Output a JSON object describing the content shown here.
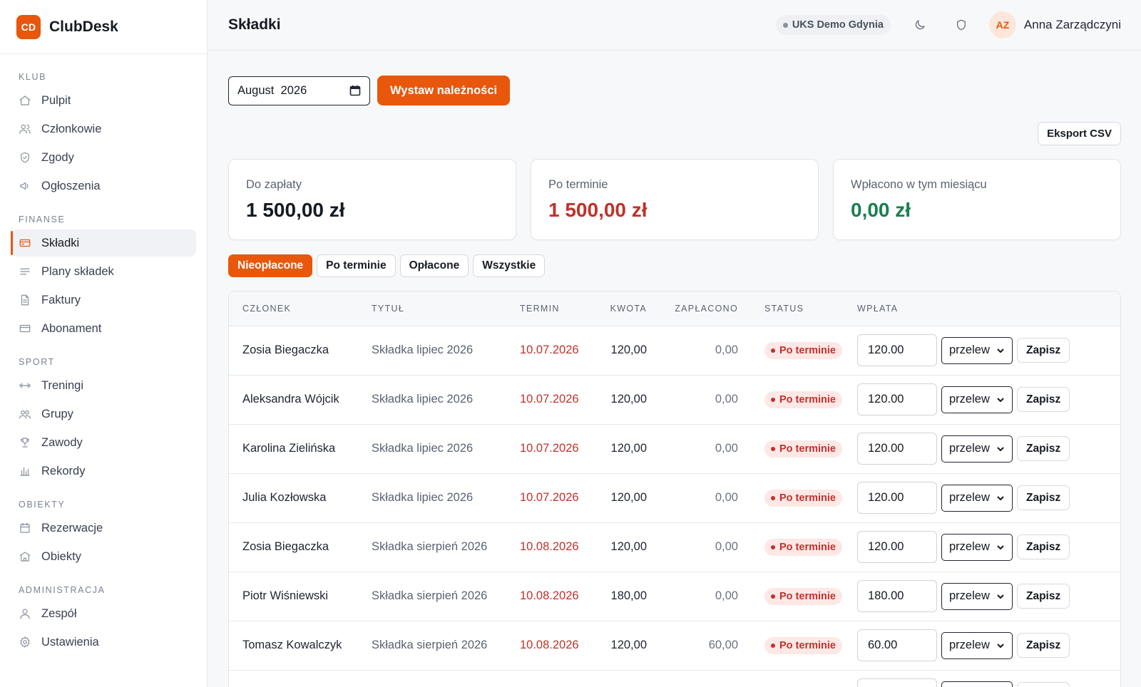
{
  "brand": {
    "logo_text": "CD",
    "name": "ClubDesk"
  },
  "sidebar": {
    "sections": [
      {
        "title": "KLUB",
        "items": [
          {
            "label": "Pulpit",
            "icon": "home-icon"
          },
          {
            "label": "Członkowie",
            "icon": "users-icon"
          },
          {
            "label": "Zgody",
            "icon": "shield-check-icon"
          },
          {
            "label": "Ogłoszenia",
            "icon": "megaphone-icon"
          }
        ]
      },
      {
        "title": "FINANSE",
        "items": [
          {
            "label": "Składki",
            "icon": "credit-card-icon",
            "active": true
          },
          {
            "label": "Plany składek",
            "icon": "list-icon"
          },
          {
            "label": "Faktury",
            "icon": "document-icon"
          },
          {
            "label": "Abonament",
            "icon": "card-icon"
          }
        ]
      },
      {
        "title": "SPORT",
        "items": [
          {
            "label": "Treningi",
            "icon": "dumbbell-icon"
          },
          {
            "label": "Grupy",
            "icon": "group-icon"
          },
          {
            "label": "Zawody",
            "icon": "trophy-icon"
          },
          {
            "label": "Rekordy",
            "icon": "bar-chart-icon"
          }
        ]
      },
      {
        "title": "OBIEKTY",
        "items": [
          {
            "label": "Rezerwacje",
            "icon": "calendar-icon"
          },
          {
            "label": "Obiekty",
            "icon": "building-icon"
          }
        ]
      },
      {
        "title": "ADMINISTRACJA",
        "items": [
          {
            "label": "Zespół",
            "icon": "user-icon"
          },
          {
            "label": "Ustawienia",
            "icon": "gear-icon"
          }
        ]
      }
    ]
  },
  "header": {
    "title": "Składki",
    "club": "UKS Demo Gdynia",
    "user_initials": "AZ",
    "user_name": "Anna Zarządczyni"
  },
  "toolbar": {
    "month_value": "August  2026",
    "issue_button": "Wystaw należności",
    "export_button": "Eksport CSV"
  },
  "stats": [
    {
      "label": "Do zapłaty",
      "value": "1 500,00 zł",
      "tone": "default"
    },
    {
      "label": "Po terminie",
      "value": "1 500,00 zł",
      "tone": "red"
    },
    {
      "label": "Wpłacono w tym miesiącu",
      "value": "0,00 zł",
      "tone": "green"
    }
  ],
  "filters": [
    {
      "label": "Nieopłacone",
      "active": true
    },
    {
      "label": "Po terminie",
      "active": false
    },
    {
      "label": "Opłacone",
      "active": false
    },
    {
      "label": "Wszystkie",
      "active": false
    }
  ],
  "table": {
    "headers": {
      "member": "CZŁONEK",
      "title": "TYTUŁ",
      "due": "TERMIN",
      "amount": "KWOTA",
      "paid": "ZAPŁACONO",
      "status": "STATUS",
      "payment": "WPŁATA"
    },
    "save_label": "Zapisz",
    "rows": [
      {
        "member": "Zosia Biegaczka",
        "title": "Składka lipiec 2026",
        "due": "10.07.2026",
        "amount": "120,00",
        "paid": "0,00",
        "status": "Po terminie",
        "payment": "120.00",
        "method": "przelew"
      },
      {
        "member": "Aleksandra Wójcik",
        "title": "Składka lipiec 2026",
        "due": "10.07.2026",
        "amount": "120,00",
        "paid": "0,00",
        "status": "Po terminie",
        "payment": "120.00",
        "method": "przelew"
      },
      {
        "member": "Karolina Zielińska",
        "title": "Składka lipiec 2026",
        "due": "10.07.2026",
        "amount": "120,00",
        "paid": "0,00",
        "status": "Po terminie",
        "payment": "120.00",
        "method": "przelew"
      },
      {
        "member": "Julia Kozłowska",
        "title": "Składka lipiec 2026",
        "due": "10.07.2026",
        "amount": "120,00",
        "paid": "0,00",
        "status": "Po terminie",
        "payment": "120.00",
        "method": "przelew"
      },
      {
        "member": "Zosia Biegaczka",
        "title": "Składka sierpień 2026",
        "due": "10.08.2026",
        "amount": "120,00",
        "paid": "0,00",
        "status": "Po terminie",
        "payment": "120.00",
        "method": "przelew"
      },
      {
        "member": "Piotr Wiśniewski",
        "title": "Składka sierpień 2026",
        "due": "10.08.2026",
        "amount": "180,00",
        "paid": "0,00",
        "status": "Po terminie",
        "payment": "180.00",
        "method": "przelew"
      },
      {
        "member": "Tomasz Kowalczyk",
        "title": "Składka sierpień 2026",
        "due": "10.08.2026",
        "amount": "120,00",
        "paid": "60,00",
        "status": "Po terminie",
        "payment": "60.00",
        "method": "przelew"
      },
      {
        "member": "",
        "title": "",
        "due": "",
        "amount": "",
        "paid": "",
        "status": "",
        "payment": "",
        "method": ""
      }
    ]
  }
}
